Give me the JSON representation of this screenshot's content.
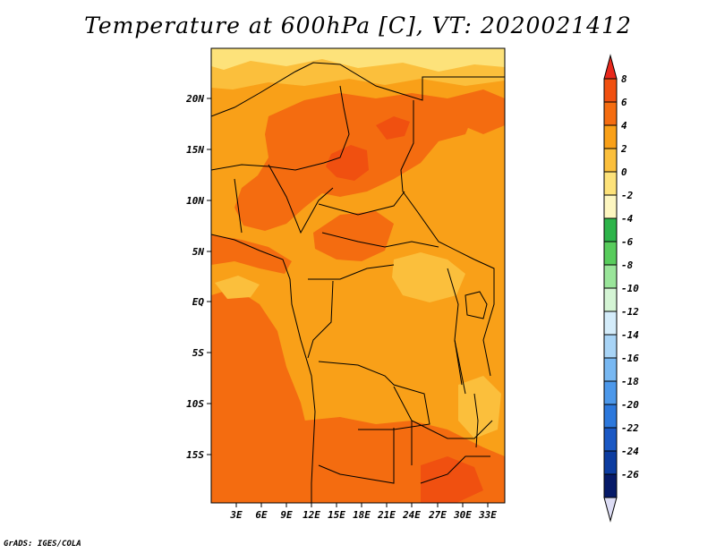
{
  "title": "Temperature at 600hPa [C], VT: 2020021412",
  "footer": "GrADS: IGES/COLA",
  "lat_labels": [
    "20N",
    "15N",
    "10N",
    "5N",
    "EQ",
    "5S",
    "10S",
    "15S"
  ],
  "lon_labels": [
    "3E",
    "6E",
    "9E",
    "12E",
    "15E",
    "18E",
    "21E",
    "24E",
    "27E",
    "30E",
    "33E"
  ],
  "colorbar": {
    "levels": [
      "8",
      "6",
      "4",
      "2",
      "0",
      "-2",
      "-4",
      "-6",
      "-8",
      "-10",
      "-12",
      "-14",
      "-16",
      "-18",
      "-20",
      "-22",
      "-24",
      "-26"
    ],
    "colors": [
      "#e8281c",
      "#f05010",
      "#f46c10",
      "#f9a018",
      "#fbbf3c",
      "#fde27a",
      "#fdf6c0",
      "#2db44a",
      "#58cc5c",
      "#9ae59a",
      "#d4f4d4",
      "#d4ecfa",
      "#a8d4f6",
      "#78b8f2",
      "#4c98ea",
      "#2c78dc",
      "#1a58c4",
      "#0c3ca0",
      "#061a68",
      "#dcdcf4"
    ]
  },
  "map_colors": {
    "base": "#f9a018",
    "warm": "#f46c10",
    "hot": "#f05010",
    "cool": "#fbbf3c",
    "pale": "#fde27a"
  }
}
